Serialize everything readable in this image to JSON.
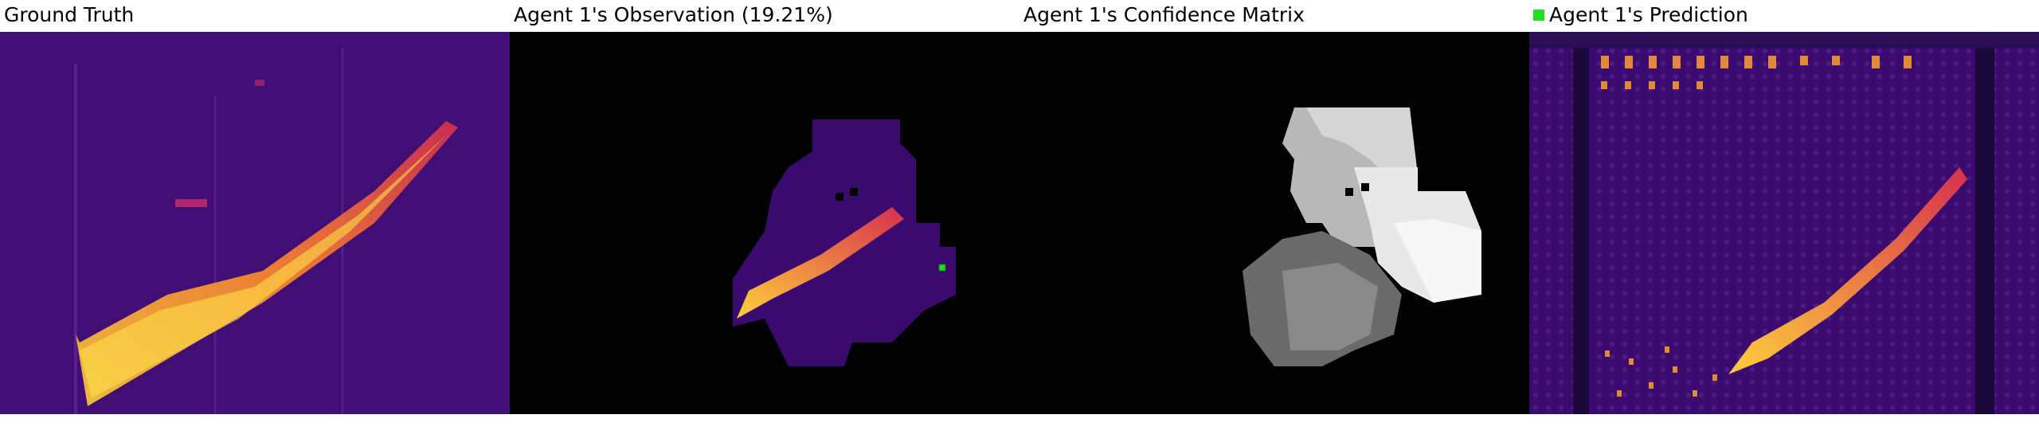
{
  "panels": [
    {
      "title": "Ground Truth"
    },
    {
      "title": "Agent 1's Observation (19.21%)"
    },
    {
      "title": "Agent 1's Confidence Matrix"
    },
    {
      "title": "Agent 1's Prediction",
      "legend_color": "#22dd22"
    }
  ],
  "colors": {
    "background": "#ffffff",
    "heatmap_base": "#3b0a6e",
    "heatmap_hot": "#ffd23a",
    "mask_black": "#000000",
    "marker_green": "#22dd22"
  }
}
